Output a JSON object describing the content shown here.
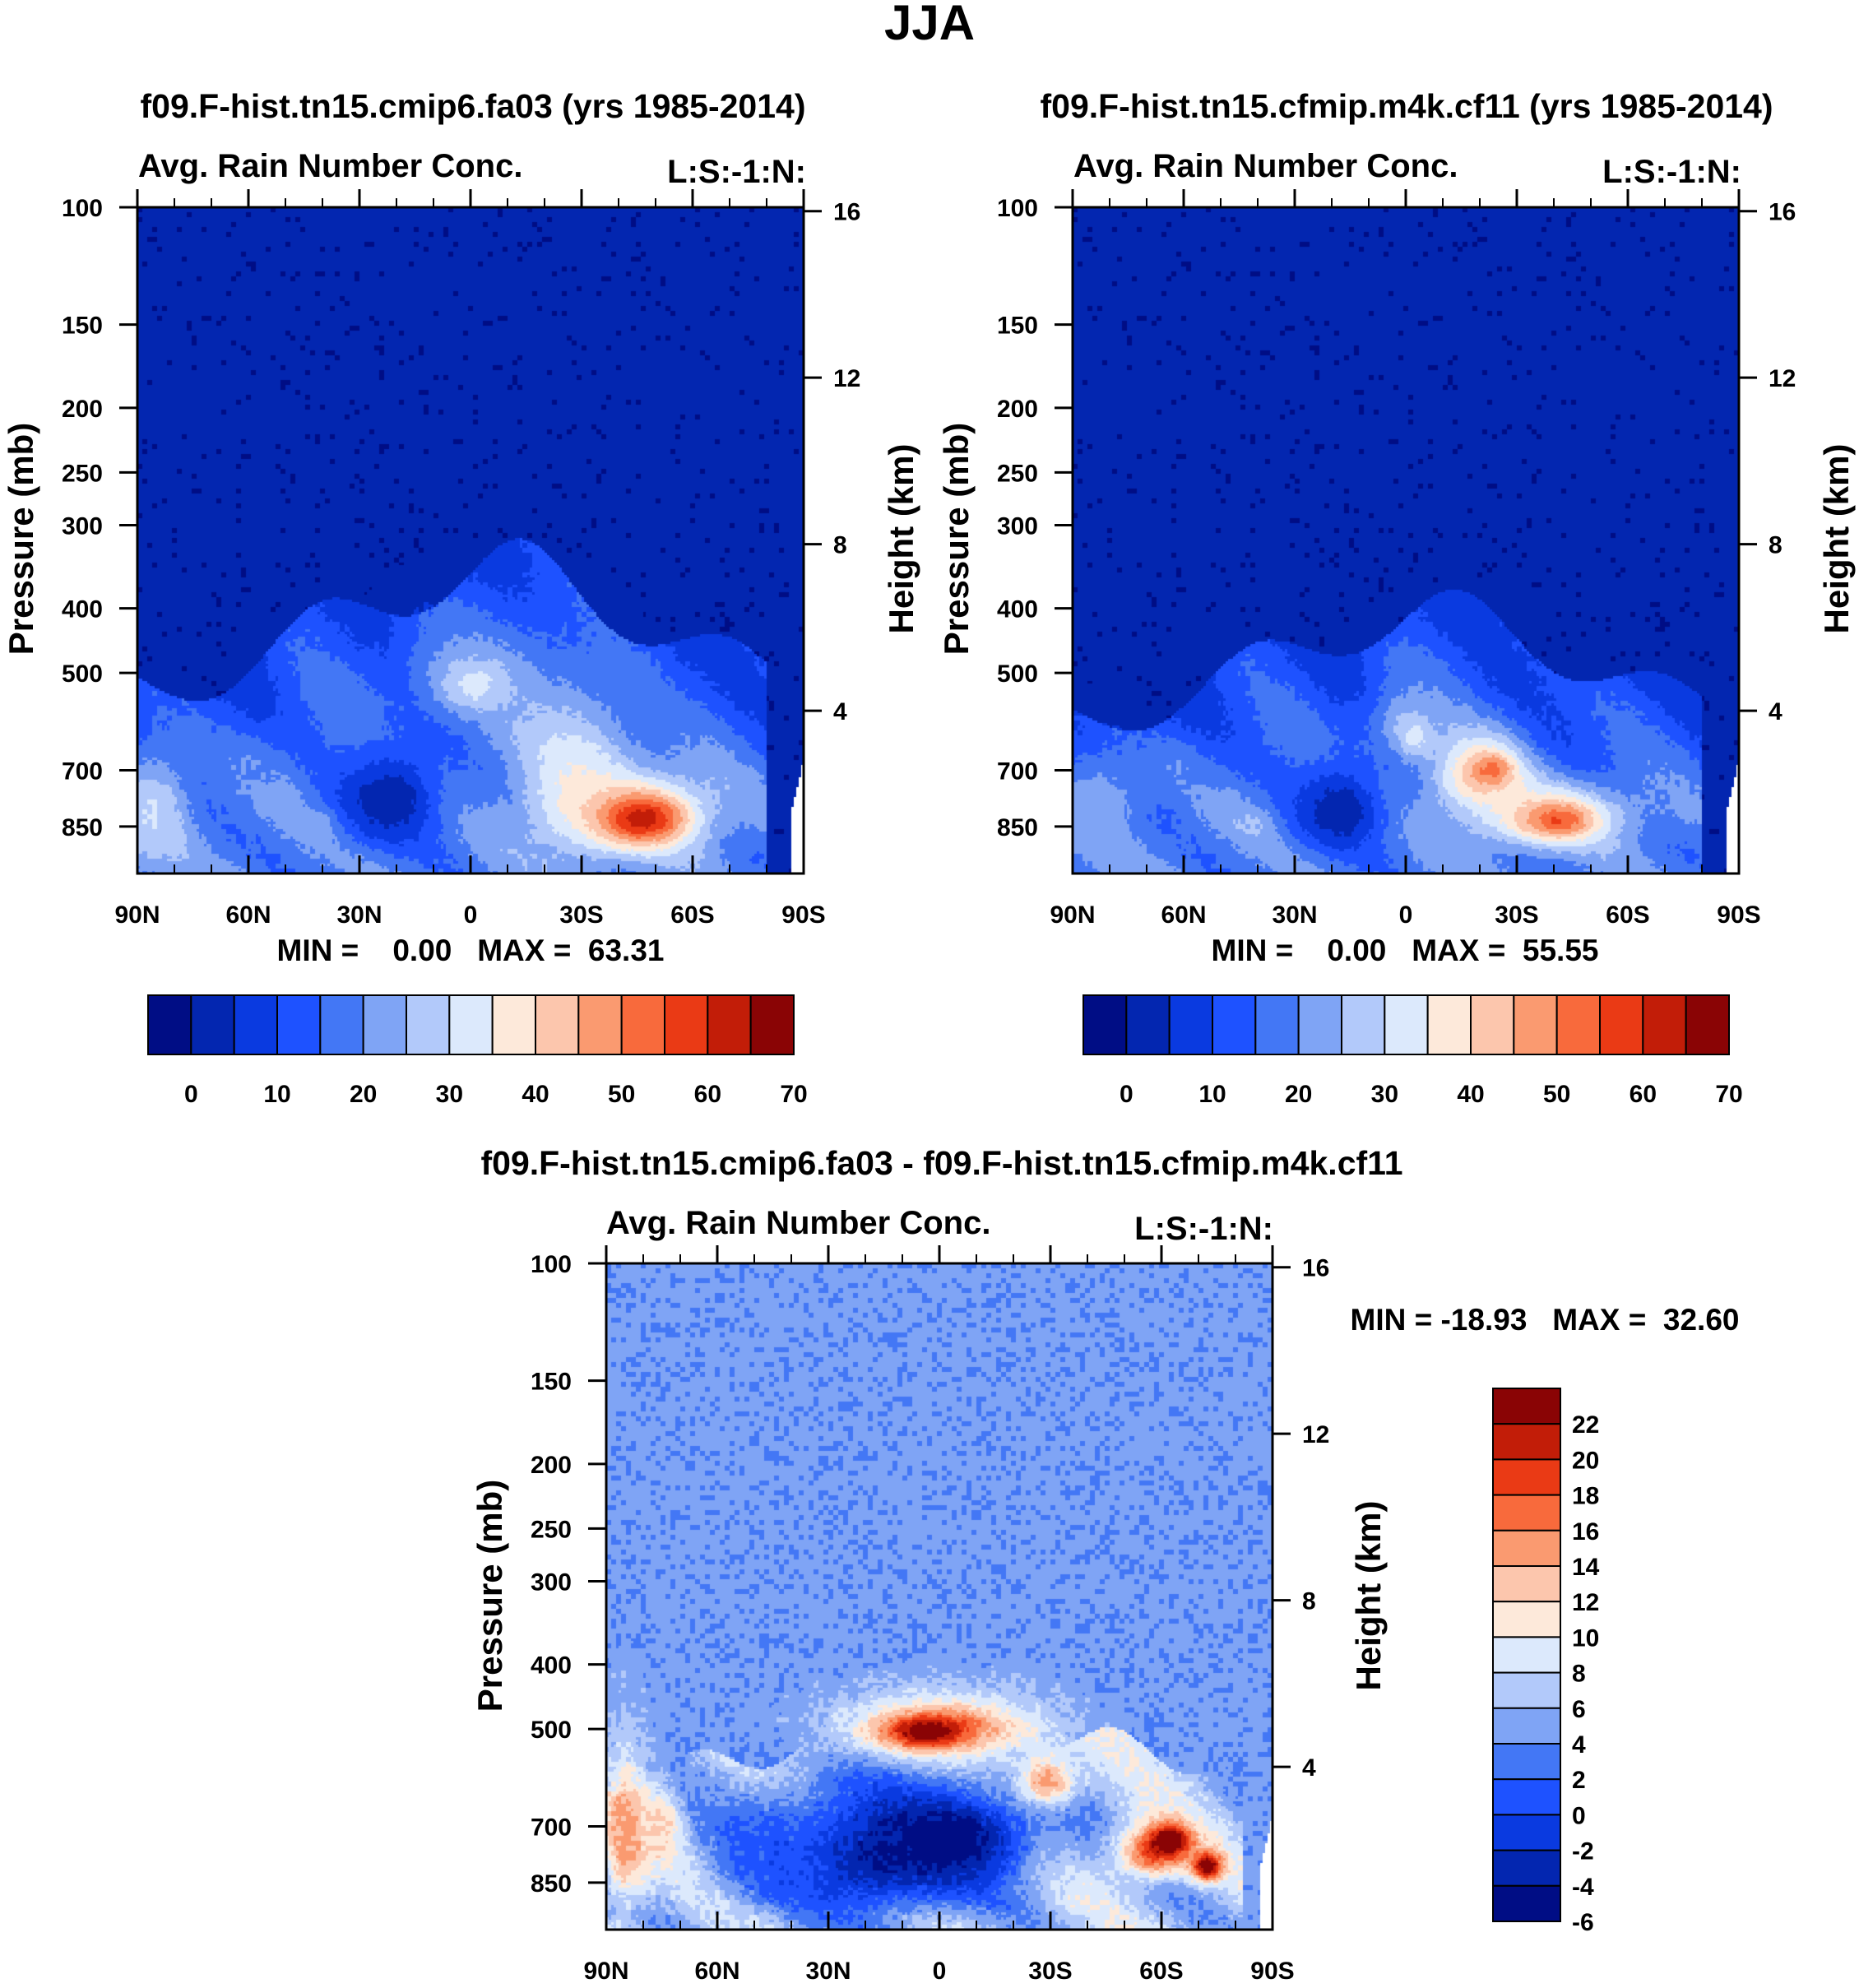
{
  "figure_title": "JJA",
  "colors": {
    "abs_palette": [
      "#000d85",
      "#0326b0",
      "#0a3ae0",
      "#1e52ff",
      "#4377f5",
      "#7fa4f5",
      "#b2c9fa",
      "#dce9fc",
      "#fde9da",
      "#fcc6ad",
      "#fa9a70",
      "#f86a3c",
      "#ea3a15",
      "#c21d08",
      "#8a0405"
    ],
    "diff_palette": [
      "#000d85",
      "#0326b0",
      "#0a3ae0",
      "#1e52ff",
      "#4377f5",
      "#7fa4f5",
      "#b2c9fa",
      "#dce9fc",
      "#fde9da",
      "#fcc6ad",
      "#fa9a70",
      "#f86a3c",
      "#ea3a15",
      "#c21d08",
      "#8a0405"
    ],
    "white": "#ffffff"
  },
  "chart_data": [
    {
      "type": "heatmap",
      "panel": "top-left",
      "case_title": "f09.F-hist.tn15.cmip6.fa03 (yrs 1985-2014)",
      "left_string": "Avg. Rain Number Conc.",
      "right_string": "L:S:-1:N:",
      "ylabel": "Pressure (mb)",
      "ylabel_right": "Height (km)",
      "xticks": [
        "90N",
        "60N",
        "30N",
        "0",
        "30S",
        "60S",
        "90S"
      ],
      "yticks": [
        "100",
        "150",
        "200",
        "250",
        "300",
        "400",
        "500",
        "700",
        "850"
      ],
      "yticks_right": [
        "16",
        "12",
        "8",
        "4"
      ],
      "xlim": [
        90,
        -90
      ],
      "ylim_mb": [
        100,
        1000
      ],
      "min_max": "MIN =    0.00   MAX =  63.31",
      "levels": [
        0,
        5,
        10,
        15,
        20,
        25,
        30,
        35,
        40,
        45,
        50,
        55,
        60,
        65,
        70
      ],
      "colorbar_labels": [
        "0",
        "10",
        "20",
        "30",
        "40",
        "50",
        "60",
        "70"
      ],
      "features": [
        {
          "kind": "raincap",
          "top_mb": 440,
          "value": 3
        },
        {
          "kind": "blob",
          "lat": -1,
          "p_mb": 505,
          "rlat": 20,
          "rp": 95,
          "value": 22
        },
        {
          "kind": "blob",
          "lat": -1,
          "p_mb": 520,
          "rlat": 9,
          "rp": 45,
          "value": 32
        },
        {
          "kind": "blob",
          "lat": -28,
          "p_mb": 730,
          "rlat": 16,
          "rp": 200,
          "value": 34
        },
        {
          "kind": "blob",
          "lat": -46,
          "p_mb": 820,
          "rlat": 18,
          "rp": 110,
          "value": 48
        },
        {
          "kind": "blob",
          "lat": -46,
          "p_mb": 825,
          "rlat": 9,
          "rp": 55,
          "value": 63
        },
        {
          "kind": "blob",
          "lat": 22,
          "p_mb": 770,
          "rlat": 14,
          "rp": 130,
          "value": 1
        },
        {
          "kind": "blob",
          "lat": 86,
          "p_mb": 810,
          "rlat": 10,
          "rp": 160,
          "value": 30
        },
        {
          "kind": "blob",
          "lat": 60,
          "p_mb": 700,
          "rlat": 8,
          "rp": 60,
          "value": 20
        },
        {
          "kind": "blob",
          "lat": 43,
          "p_mb": 840,
          "rlat": 5,
          "rp": 40,
          "value": 24
        }
      ]
    },
    {
      "type": "heatmap",
      "panel": "top-right",
      "case_title": "f09.F-hist.tn15.cfmip.m4k.cf11 (yrs 1985-2014)",
      "left_string": "Avg. Rain Number Conc.",
      "right_string": "L:S:-1:N:",
      "ylabel": "Pressure (mb)",
      "ylabel_right": "Height (km)",
      "xticks": [
        "90N",
        "60N",
        "30N",
        "0",
        "30S",
        "60S",
        "90S"
      ],
      "yticks": [
        "100",
        "150",
        "200",
        "250",
        "300",
        "400",
        "500",
        "700",
        "850"
      ],
      "yticks_right": [
        "16",
        "12",
        "8",
        "4"
      ],
      "xlim": [
        90,
        -90
      ],
      "ylim_mb": [
        100,
        1000
      ],
      "min_max": "MIN =    0.00   MAX =  55.55",
      "levels": [
        0,
        5,
        10,
        15,
        20,
        25,
        30,
        35,
        40,
        45,
        50,
        55,
        60,
        65,
        70
      ],
      "colorbar_labels": [
        "0",
        "10",
        "20",
        "30",
        "40",
        "50",
        "60",
        "70"
      ],
      "features": [
        {
          "kind": "raincap",
          "top_mb": 500,
          "value": 3
        },
        {
          "kind": "blob",
          "lat": 0,
          "p_mb": 600,
          "rlat": 10,
          "rp": 80,
          "value": 25
        },
        {
          "kind": "blob",
          "lat": -2,
          "p_mb": 620,
          "rlat": 4,
          "rp": 40,
          "value": 32
        },
        {
          "kind": "blob",
          "lat": -20,
          "p_mb": 710,
          "rlat": 12,
          "rp": 90,
          "value": 44
        },
        {
          "kind": "blob",
          "lat": -38,
          "p_mb": 820,
          "rlat": 20,
          "rp": 90,
          "value": 42
        },
        {
          "kind": "blob",
          "lat": -41,
          "p_mb": 830,
          "rlat": 8,
          "rp": 45,
          "value": 55
        },
        {
          "kind": "blob",
          "lat": -23,
          "p_mb": 695,
          "rlat": 5,
          "rp": 35,
          "value": 52
        },
        {
          "kind": "blob",
          "lat": 18,
          "p_mb": 800,
          "rlat": 12,
          "rp": 120,
          "value": 1
        },
        {
          "kind": "blob",
          "lat": 83,
          "p_mb": 790,
          "rlat": 12,
          "rp": 140,
          "value": 24
        },
        {
          "kind": "blob",
          "lat": 42,
          "p_mb": 840,
          "rlat": 5,
          "rp": 40,
          "value": 26
        },
        {
          "kind": "blob",
          "lat": 62,
          "p_mb": 700,
          "rlat": 6,
          "rp": 50,
          "value": 20
        }
      ]
    },
    {
      "type": "heatmap",
      "panel": "bottom-difference",
      "case_title": "f09.F-hist.tn15.cmip6.fa03 - f09.F-hist.tn15.cfmip.m4k.cf11",
      "left_string": "Avg. Rain Number Conc.",
      "right_string": "L:S:-1:N:",
      "ylabel": "Pressure (mb)",
      "ylabel_right": "Height (km)",
      "xticks": [
        "90N",
        "60N",
        "30N",
        "0",
        "30S",
        "60S",
        "90S"
      ],
      "yticks": [
        "100",
        "150",
        "200",
        "250",
        "300",
        "400",
        "500",
        "700",
        "850"
      ],
      "yticks_right": [
        "16",
        "12",
        "8",
        "4"
      ],
      "xlim": [
        90,
        -90
      ],
      "ylim_mb": [
        100,
        1000
      ],
      "min_max": "MIN = -18.93   MAX =  32.60",
      "levels": [
        -7,
        -5,
        -3,
        -1,
        1,
        3,
        5,
        7,
        9,
        11,
        13,
        15,
        17,
        19,
        21,
        23
      ],
      "colorbar_labels": [
        "22",
        "20",
        "18",
        "16",
        "14",
        "12",
        "10",
        "8",
        "6",
        "4",
        "2",
        "0",
        "-2",
        "-4",
        "-6"
      ],
      "features": [
        {
          "kind": "blob",
          "lat": 0,
          "p_mb": 500,
          "rlat": 26,
          "rp": 55,
          "value": 14
        },
        {
          "kind": "blob",
          "lat": 4,
          "p_mb": 505,
          "rlat": 10,
          "rp": 25,
          "value": 24
        },
        {
          "kind": "blob",
          "lat": -28,
          "p_mb": 600,
          "rlat": 8,
          "rp": 50,
          "value": 14
        },
        {
          "kind": "blob",
          "lat": -58,
          "p_mb": 760,
          "rlat": 10,
          "rp": 70,
          "value": 16
        },
        {
          "kind": "blob",
          "lat": -62,
          "p_mb": 730,
          "rlat": 5,
          "rp": 35,
          "value": 24
        },
        {
          "kind": "blob",
          "lat": -72,
          "p_mb": 800,
          "rlat": 4,
          "rp": 40,
          "value": 22
        },
        {
          "kind": "blob",
          "lat": 85,
          "p_mb": 720,
          "rlat": 6,
          "rp": 180,
          "value": 12
        },
        {
          "kind": "blob",
          "lat": 75,
          "p_mb": 700,
          "rlat": 5,
          "rp": 80,
          "value": 10
        },
        {
          "kind": "blob",
          "lat": 20,
          "p_mb": 780,
          "rlat": 30,
          "rp": 170,
          "value": -6
        },
        {
          "kind": "blob",
          "lat": -2,
          "p_mb": 730,
          "rlat": 22,
          "rp": 120,
          "value": -9
        },
        {
          "kind": "blob",
          "lat": 45,
          "p_mb": 760,
          "rlat": 14,
          "rp": 130,
          "value": -2
        }
      ]
    }
  ]
}
